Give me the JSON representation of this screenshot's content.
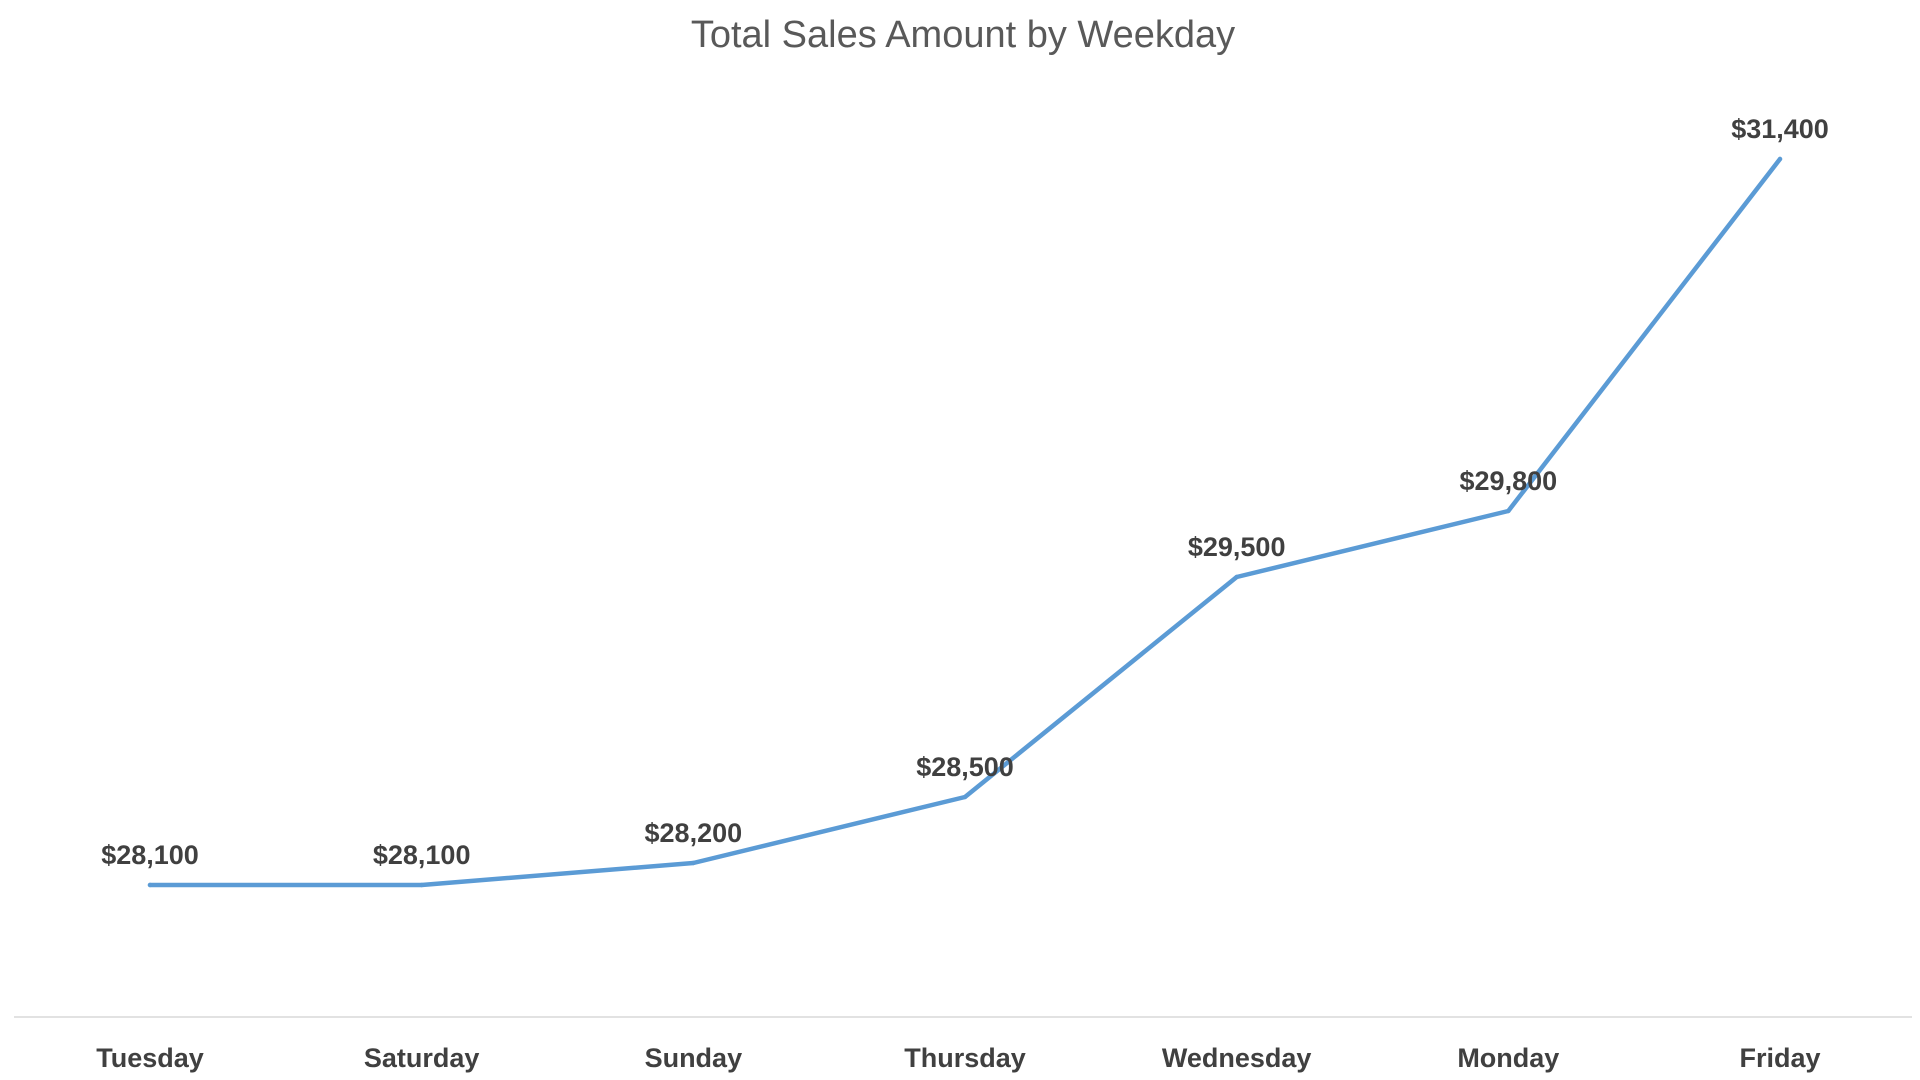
{
  "colors": {
    "series": "#5b9bd5",
    "axis": "#d9d9d9",
    "title": "#595959",
    "labels": "#404040"
  },
  "chart_data": {
    "type": "line",
    "title": "Total Sales Amount by Weekday",
    "xlabel": "",
    "ylabel": "",
    "categories": [
      "Tuesday",
      "Saturday",
      "Sunday",
      "Thursday",
      "Wednesday",
      "Monday",
      "Friday"
    ],
    "series": [
      {
        "name": "Total Sales Amount",
        "values": [
          28100,
          28100,
          28200,
          28500,
          29500,
          29800,
          31400
        ],
        "data_labels": [
          "$28,100",
          "$28,100",
          "$28,200",
          "$28,500",
          "$29,500",
          "$29,800",
          "$31,400"
        ]
      }
    ],
    "ylim": [
      27500,
      31700
    ],
    "grid": false,
    "legend": "none"
  }
}
